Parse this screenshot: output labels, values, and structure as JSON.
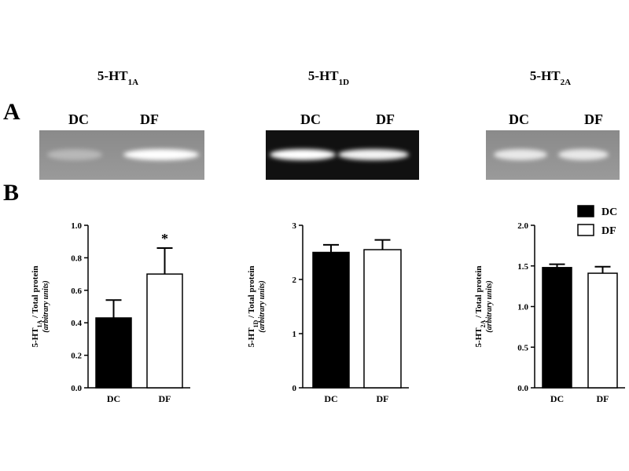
{
  "panel_labels": [
    "A",
    "B"
  ],
  "chart_data": [
    {
      "type": "bar",
      "title_main": "5-HT",
      "title_sub": "1A",
      "blot_labels": [
        "DC",
        "DF"
      ],
      "ylabel_main": "5-HT",
      "ylabel_sub": "1A",
      "ylabel_rest": " / Total protein",
      "ylabel_note": "(arbitrary units)",
      "categories": [
        "DC",
        "DF"
      ],
      "values": [
        0.43,
        0.7
      ],
      "errors": [
        0.11,
        0.16
      ],
      "colors": [
        "#000000",
        "#ffffff"
      ],
      "ylim": [
        0,
        1.0
      ],
      "yticks": [
        {
          "value": 0,
          "label": "0.0"
        },
        0.2,
        0.4,
        0.6,
        0.8,
        {
          "value": 1.0,
          "label": "1.0"
        }
      ],
      "annotations": [
        {
          "text": "*",
          "x": "DF"
        }
      ],
      "legend": false
    },
    {
      "type": "bar",
      "title_main": "5-HT",
      "title_sub": "1D",
      "blot_labels": [
        "DC",
        "DF"
      ],
      "ylabel_main": "5-HT",
      "ylabel_sub": "1D",
      "ylabel_rest": " / Total protein",
      "ylabel_note": "(arbitrary units)",
      "categories": [
        "DC",
        "DF"
      ],
      "values": [
        2.5,
        2.55
      ],
      "errors": [
        0.14,
        0.18
      ],
      "colors": [
        "#000000",
        "#ffffff"
      ],
      "ylim": [
        0,
        3
      ],
      "yticks": [
        0,
        1,
        2,
        3
      ],
      "annotations": [],
      "legend": false
    },
    {
      "type": "bar",
      "title_main": "5-HT",
      "title_sub": "2A",
      "blot_labels": [
        "DC",
        "DF"
      ],
      "ylabel_main": "5-HT",
      "ylabel_sub": "2A",
      "ylabel_rest": " / Total protein",
      "ylabel_note": "(arbitrary units)",
      "categories": [
        "DC",
        "DF"
      ],
      "values": [
        1.48,
        1.41
      ],
      "errors": [
        0.04,
        0.08
      ],
      "colors": [
        "#000000",
        "#ffffff"
      ],
      "ylim": [
        0,
        2.0
      ],
      "yticks": [
        {
          "value": 0,
          "label": "0.0"
        },
        0.5,
        {
          "value": 1.0,
          "label": "1.0"
        },
        1.5,
        {
          "value": 2.0,
          "label": "2.0"
        }
      ],
      "annotations": [],
      "legend": true
    }
  ]
}
